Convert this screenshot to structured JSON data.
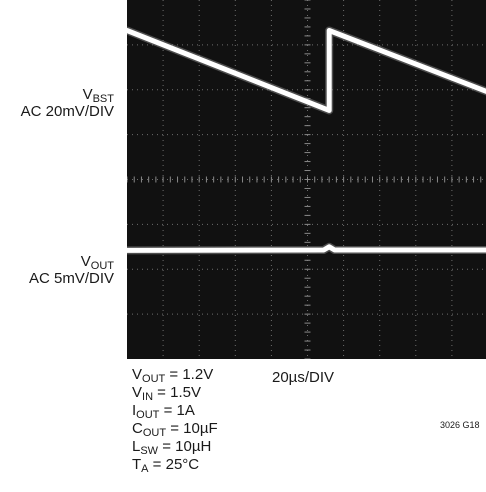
{
  "chart_data": {
    "type": "line",
    "title": "",
    "xlabel": "20µs/DIV",
    "x_divisions": 10,
    "y_divisions": 8,
    "grid": true,
    "series": [
      {
        "label_main": "V",
        "label_sub": "BST",
        "scale": "AC 20mV/DIV",
        "color": "#ffffff",
        "points": [
          [
            0.0,
            7.32
          ],
          [
            5.6,
            5.54
          ],
          [
            5.6,
            7.32
          ],
          [
            10.0,
            5.95
          ]
        ]
      },
      {
        "label_main": "V",
        "label_sub": "OUT",
        "scale": "AC 5mV/DIV",
        "color": "#ffffff",
        "points": [
          [
            0.0,
            2.42
          ],
          [
            5.45,
            2.43
          ],
          [
            5.6,
            2.5
          ],
          [
            5.75,
            2.43
          ],
          [
            10.0,
            2.43
          ]
        ]
      }
    ]
  },
  "conditions": [
    {
      "main": "V",
      "sub": "OUT",
      "rest": " = 1.2V"
    },
    {
      "main": "V",
      "sub": "IN",
      "rest": " = 1.5V"
    },
    {
      "main": "I",
      "sub": "OUT",
      "rest": " = 1A"
    },
    {
      "main": "C",
      "sub": "OUT",
      "rest": " = 10µF"
    },
    {
      "main": "L",
      "sub": "SW",
      "rest": " = 10µH"
    },
    {
      "main": "T",
      "sub": "A",
      "rest": " = 25°C"
    }
  ],
  "figure_id": "3026 G18"
}
